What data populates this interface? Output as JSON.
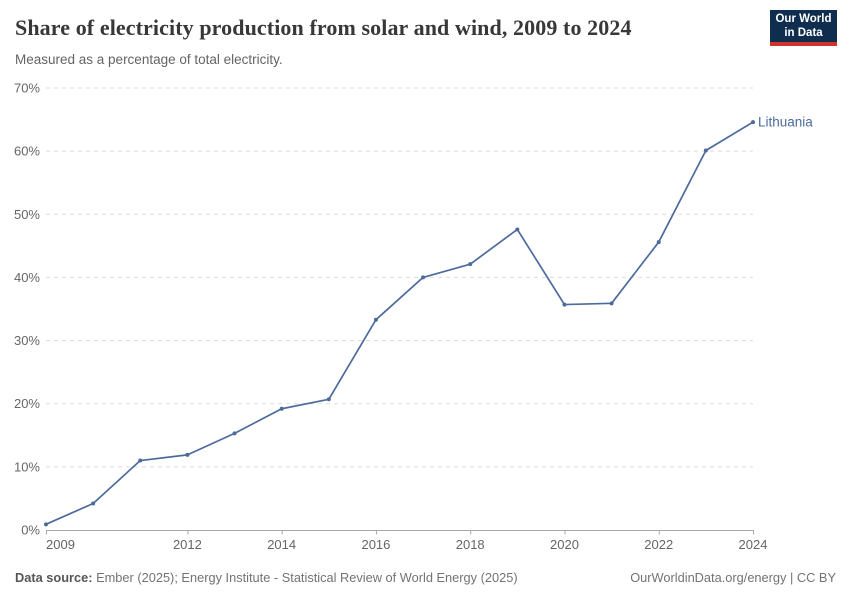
{
  "header": {
    "title": "Share of electricity production from solar and wind, 2009 to 2024",
    "subtitle": "Measured as a percentage of total electricity.",
    "logo": {
      "line1": "Our World",
      "line2": "in Data"
    }
  },
  "chart_data": {
    "type": "line",
    "title": "Share of electricity production from solar and wind, 2009 to 2024",
    "subtitle": "Measured as a percentage of total electricity.",
    "x": [
      2009,
      2010,
      2011,
      2012,
      2013,
      2014,
      2015,
      2016,
      2017,
      2018,
      2019,
      2020,
      2021,
      2022,
      2023,
      2024
    ],
    "series": [
      {
        "name": "Lithuania",
        "values": [
          0.9,
          4.2,
          11.0,
          11.9,
          15.3,
          19.2,
          20.7,
          33.3,
          40.0,
          42.1,
          47.6,
          35.7,
          35.9,
          45.6,
          60.1,
          64.6
        ]
      }
    ],
    "xlabel": "",
    "ylabel": "",
    "xlim": [
      2009,
      2024
    ],
    "ylim": [
      0,
      70
    ],
    "yticks": [
      0,
      10,
      20,
      30,
      40,
      50,
      60,
      70
    ],
    "ytick_suffix": "%",
    "xticks": [
      2009,
      2012,
      2014,
      2016,
      2018,
      2020,
      2022,
      2024
    ],
    "grid": "horizontal-dashed",
    "legend": "end-of-line-label",
    "colors": {
      "series": "#4C6A9C",
      "gridline": "#dcdcdc",
      "axis": "#a8a8a8",
      "tick_text": "#666666"
    }
  },
  "footer": {
    "source_label": "Data source:",
    "source_text": " Ember (2025); Energy Institute - Statistical Review of World Energy (2025)",
    "credit": "OurWorldinData.org/energy | CC BY"
  }
}
